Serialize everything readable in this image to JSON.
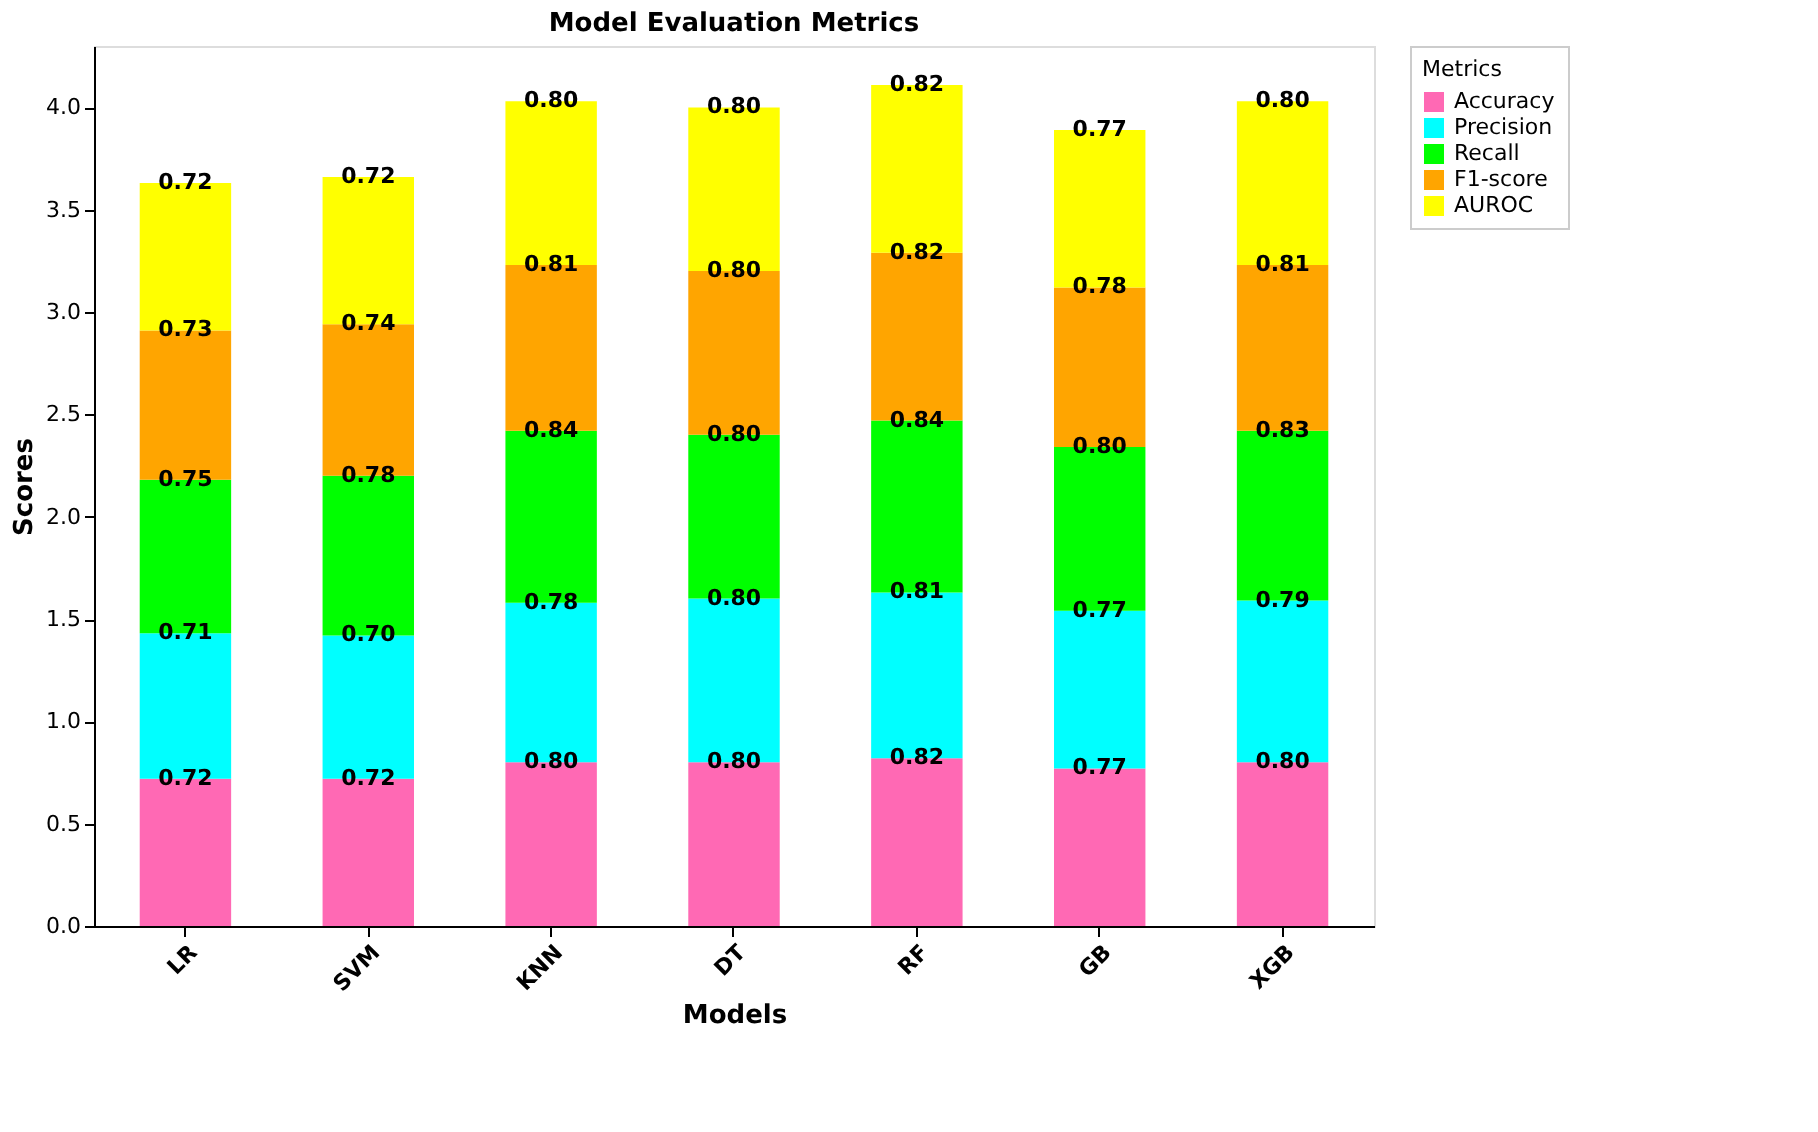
{
  "chart_data": {
    "type": "bar",
    "title": "Model Evaluation Metrics",
    "xlabel": "Models",
    "ylabel": "Scores",
    "legend_title": "Metrics",
    "categories": [
      "LR",
      "SVM",
      "KNN",
      "DT",
      "RF",
      "GB",
      "XGB"
    ],
    "series": [
      {
        "name": "Accuracy",
        "color": "#ff69b4",
        "values": [
          0.72,
          0.72,
          0.8,
          0.8,
          0.82,
          0.77,
          0.8
        ],
        "value_labels": [
          "0.72",
          "0.72",
          "0.80",
          "0.80",
          "0.82",
          "0.77",
          "0.80"
        ]
      },
      {
        "name": "Precision",
        "color": "#00ffff",
        "values": [
          0.71,
          0.7,
          0.78,
          0.8,
          0.81,
          0.77,
          0.79
        ],
        "value_labels": [
          "0.71",
          "0.70",
          "0.78",
          "0.80",
          "0.81",
          "0.77",
          "0.79"
        ]
      },
      {
        "name": "Recall",
        "color": "#00ff00",
        "values": [
          0.75,
          0.78,
          0.84,
          0.8,
          0.84,
          0.8,
          0.83
        ],
        "value_labels": [
          "0.75",
          "0.78",
          "0.84",
          "0.80",
          "0.84",
          "0.80",
          "0.83"
        ]
      },
      {
        "name": "F1-score",
        "color": "#ffa500",
        "values": [
          0.73,
          0.74,
          0.81,
          0.8,
          0.82,
          0.78,
          0.81
        ],
        "value_labels": [
          "0.73",
          "0.74",
          "0.81",
          "0.80",
          "0.82",
          "0.78",
          "0.81"
        ]
      },
      {
        "name": "AUROC",
        "color": "#ffff00",
        "values": [
          0.72,
          0.72,
          0.8,
          0.8,
          0.82,
          0.77,
          0.8
        ],
        "value_labels": [
          "0.72",
          "0.72",
          "0.80",
          "0.80",
          "0.82",
          "0.77",
          "0.80"
        ]
      }
    ],
    "stacked": true,
    "grid": false,
    "legend": "top right",
    "ylim": [
      0,
      4.3
    ],
    "yticks": [
      {
        "value": 0,
        "label": "0.0"
      },
      {
        "value": 0.5,
        "label": "0.5"
      },
      {
        "value": 1,
        "label": "1.0"
      },
      {
        "value": 1.5,
        "label": "1.5"
      },
      {
        "value": 2,
        "label": "2.0"
      },
      {
        "value": 2.5,
        "label": "2.5"
      },
      {
        "value": 3,
        "label": "3.0"
      },
      {
        "value": 3.5,
        "label": "3.5"
      },
      {
        "value": 4,
        "label": "4.0"
      }
    ]
  }
}
